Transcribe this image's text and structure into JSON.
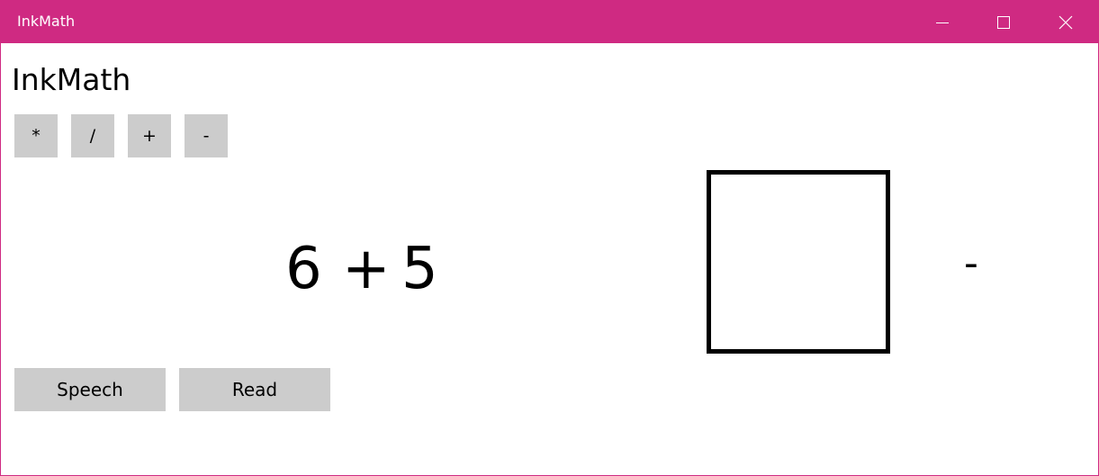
{
  "window": {
    "title": "InkMath",
    "accent_color": "#cf2a82",
    "controls": {
      "minimize_icon": "minimize-icon",
      "maximize_icon": "maximize-icon",
      "close_icon": "close-icon"
    }
  },
  "app": {
    "heading": "InkMath"
  },
  "operators": [
    {
      "label": "*"
    },
    {
      "label": "/"
    },
    {
      "label": "+"
    },
    {
      "label": "-"
    }
  ],
  "expression": {
    "left_operand": "6",
    "operator": "+",
    "right_operand": "5"
  },
  "answer": {
    "ink_input": "",
    "result": "-"
  },
  "actions": {
    "speech_label": "Speech",
    "read_label": "Read"
  }
}
